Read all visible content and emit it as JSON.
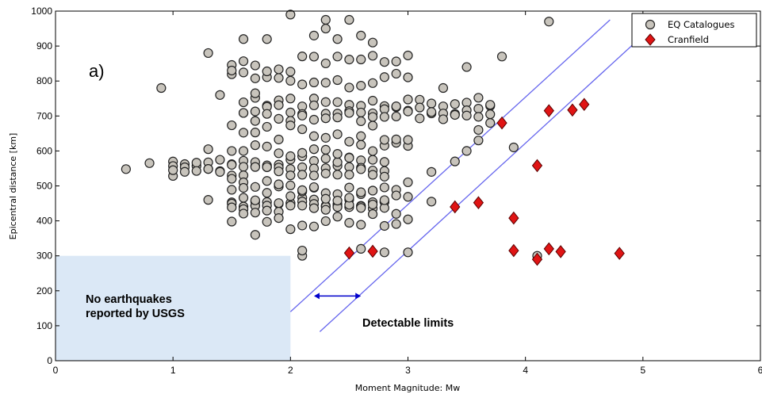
{
  "chart_data": {
    "type": "scatter",
    "panel_label": "a)",
    "xlabel": "Moment Magnitude: Mw",
    "ylabel": "Epicentral distance [km]",
    "xlim": [
      0,
      6
    ],
    "ylim": [
      0,
      1000
    ],
    "xticks": [
      "0",
      "1",
      "2",
      "3",
      "4",
      "5",
      "6"
    ],
    "yticks": [
      "0",
      "100",
      "200",
      "300",
      "400",
      "500",
      "600",
      "700",
      "800",
      "900",
      "1000"
    ],
    "legend_position": "top-right",
    "series": [
      {
        "name": "EQ Catalogues",
        "marker": "circle",
        "color": "#c8c4bc",
        "edge_color": "#222222",
        "bands": [
          {
            "x_range": [
              1.0,
              2.8
            ],
            "x_step": 0.1,
            "y": [
              570,
              555,
              540
            ],
            "jitter": 15
          },
          {
            "x_range": [
              1.5,
              2.8
            ],
            "x_step": 0.1,
            "y": [
              455,
              445,
              435
            ],
            "jitter": 12
          },
          {
            "x_range": [
              1.6,
              3.7
            ],
            "x_step": 0.1,
            "y": [
              740,
              720,
              700
            ],
            "jitter": 15
          },
          {
            "x_range": [
              1.5,
              3.0
            ],
            "x_step": 0.1,
            "y": [
              600,
              500,
              480,
              400,
              650,
              800,
              850
            ],
            "jitter": 25
          }
        ],
        "points": [
          [
            0.6,
            548
          ],
          [
            0.8,
            565
          ],
          [
            0.9,
            780
          ],
          [
            1.0,
            545
          ],
          [
            1.3,
            880
          ],
          [
            1.3,
            460
          ],
          [
            1.3,
            605
          ],
          [
            1.4,
            760
          ],
          [
            1.5,
            830
          ],
          [
            1.6,
            920
          ],
          [
            1.7,
            360
          ],
          [
            1.7,
            765
          ],
          [
            1.8,
            920
          ],
          [
            2.0,
            990
          ],
          [
            2.1,
            300
          ],
          [
            2.1,
            315
          ],
          [
            2.2,
            930
          ],
          [
            2.3,
            950
          ],
          [
            2.3,
            975
          ],
          [
            2.4,
            920
          ],
          [
            2.5,
            975
          ],
          [
            2.6,
            320
          ],
          [
            2.6,
            930
          ],
          [
            2.7,
            910
          ],
          [
            2.8,
            310
          ],
          [
            2.9,
            420
          ],
          [
            3.0,
            310
          ],
          [
            3.2,
            455
          ],
          [
            3.2,
            540
          ],
          [
            3.3,
            780
          ],
          [
            3.4,
            570
          ],
          [
            3.5,
            600
          ],
          [
            3.5,
            840
          ],
          [
            3.6,
            630
          ],
          [
            3.6,
            660
          ],
          [
            3.7,
            680
          ],
          [
            3.8,
            870
          ],
          [
            3.9,
            610
          ],
          [
            4.1,
            300
          ],
          [
            4.2,
            970
          ]
        ]
      },
      {
        "name": "Cranfield",
        "marker": "diamond",
        "color": "#e01414",
        "edge_color": "#5a0000",
        "points": [
          [
            2.5,
            308
          ],
          [
            2.7,
            313
          ],
          [
            3.4,
            440
          ],
          [
            3.6,
            452
          ],
          [
            3.8,
            680
          ],
          [
            3.9,
            408
          ],
          [
            3.9,
            315
          ],
          [
            4.1,
            290
          ],
          [
            4.1,
            558
          ],
          [
            4.2,
            715
          ],
          [
            4.2,
            320
          ],
          [
            4.3,
            312
          ],
          [
            4.4,
            717
          ],
          [
            4.5,
            733
          ],
          [
            4.8,
            307
          ]
        ]
      }
    ],
    "detectable_lines": [
      {
        "x": [
          2.0,
          4.72
        ],
        "y": [
          140,
          975
        ]
      },
      {
        "x": [
          2.25,
          4.95
        ],
        "y": [
          83,
          915
        ]
      }
    ],
    "shaded_region": {
      "x": [
        0,
        2.0
      ],
      "y": [
        0,
        300
      ],
      "color": "#dbe8f6"
    },
    "arrow": {
      "x": [
        2.2,
        2.6
      ],
      "y": 185,
      "color": "#0000cc"
    },
    "annotations": {
      "no_eq_line1": "No earthquakes",
      "no_eq_line2": "reported by USGS",
      "detectable": "Detectable limits"
    },
    "colors": {
      "line": "#6666ee",
      "axis": "#000000",
      "background": "#ffffff"
    }
  }
}
